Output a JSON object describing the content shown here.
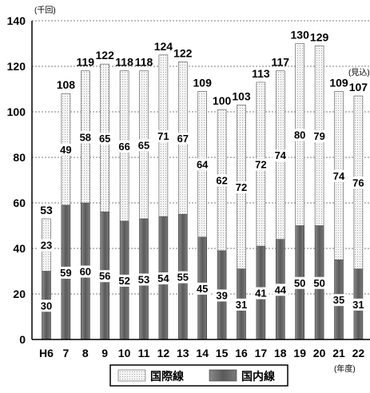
{
  "chart_data": {
    "type": "bar",
    "stacked": true,
    "unit": "(千回)",
    "categories": [
      "H6",
      "7",
      "8",
      "9",
      "10",
      "11",
      "12",
      "13",
      "14",
      "15",
      "16",
      "17",
      "18",
      "19",
      "20",
      "21",
      "22"
    ],
    "series": [
      {
        "name": "国内線",
        "values": [
          30,
          59,
          60,
          56,
          52,
          53,
          54,
          55,
          45,
          39,
          31,
          41,
          44,
          50,
          50,
          35,
          31
        ],
        "color": "#6b6b6b"
      },
      {
        "name": "国際線",
        "values": [
          23,
          49,
          58,
          65,
          66,
          65,
          71,
          67,
          64,
          62,
          72,
          72,
          74,
          80,
          79,
          74,
          76
        ],
        "color": "#eeeeee"
      }
    ],
    "totals": [
      "53",
      "108",
      "119",
      "122",
      "118",
      "118",
      "124",
      "122",
      "109",
      "100",
      "103",
      "113",
      "117",
      "130",
      "129",
      "109",
      "107"
    ],
    "ylim": [
      0,
      140
    ],
    "yticks": [
      0,
      20,
      40,
      60,
      80,
      100,
      120,
      140
    ],
    "x_unit": "(年度)",
    "annotation": "(見込)",
    "grid": true,
    "legend_position": "bottom"
  }
}
